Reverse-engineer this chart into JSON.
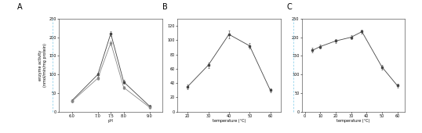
{
  "panel_A": {
    "label": "A",
    "xlabel": "pH",
    "ylabel": "enzyme activity\n(nmol/min/mg protein)",
    "xlim": [
      5.5,
      9.5
    ],
    "ylim": [
      0,
      250
    ],
    "xticks": [
      6.0,
      7.0,
      7.5,
      8.0,
      9.0
    ],
    "xticklabels": [
      "6.0",
      "7.0",
      "7.5",
      "8.0",
      "9.0"
    ],
    "yticks": [
      0,
      50,
      100,
      150,
      200,
      250
    ],
    "series": [
      {
        "x": [
          6.0,
          7.0,
          7.5,
          8.0,
          9.0
        ],
        "y": [
          30,
          100,
          210,
          80,
          15
        ],
        "yerr": [
          3,
          5,
          7,
          5,
          3
        ],
        "color": "#444444",
        "marker": "s",
        "markersize": 2,
        "linewidth": 0.6
      },
      {
        "x": [
          6.0,
          7.0,
          7.5,
          8.0,
          9.0
        ],
        "y": [
          28,
          90,
          185,
          65,
          12
        ],
        "yerr": [
          3,
          5,
          6,
          4,
          3
        ],
        "color": "#888888",
        "marker": "s",
        "markersize": 2,
        "linewidth": 0.6
      }
    ]
  },
  "panel_B": {
    "label": "B",
    "xlabel": "temperature (°C)",
    "ylabel": "",
    "xlim": [
      15,
      65
    ],
    "ylim": [
      0,
      130
    ],
    "xticks": [
      20,
      30,
      40,
      50,
      60
    ],
    "xticklabels": [
      "20",
      "30",
      "40",
      "50",
      "60"
    ],
    "yticks": [
      0,
      20,
      40,
      60,
      80,
      100,
      120
    ],
    "series": [
      {
        "x": [
          20,
          30,
          40,
          50,
          60
        ],
        "y": [
          35,
          65,
          108,
          92,
          30
        ],
        "yerr": [
          3,
          4,
          5,
          4,
          3
        ],
        "color": "#444444",
        "marker": "s",
        "markersize": 2,
        "linewidth": 0.6
      }
    ]
  },
  "panel_C": {
    "label": "C",
    "xlabel": "temperature (°C)",
    "ylabel": "",
    "xlim": [
      -2,
      65
    ],
    "ylim": [
      0,
      250
    ],
    "xticks": [
      0,
      10,
      20,
      30,
      40,
      50,
      60
    ],
    "xticklabels": [
      "0",
      "10",
      "20",
      "30",
      "40",
      "50",
      "60"
    ],
    "yticks": [
      0,
      50,
      100,
      150,
      200,
      250
    ],
    "series": [
      {
        "x": [
          5,
          10,
          20,
          30,
          37,
          50,
          60
        ],
        "y": [
          165,
          175,
          190,
          200,
          215,
          120,
          70
        ],
        "yerr": [
          6,
          5,
          5,
          6,
          6,
          6,
          5
        ],
        "color": "#444444",
        "marker": "s",
        "markersize": 2,
        "linewidth": 0.6
      }
    ]
  },
  "figure_bg": "#ffffff",
  "tick_fontsize": 3.5,
  "label_fontsize": 3.5,
  "panel_label_fontsize": 7
}
